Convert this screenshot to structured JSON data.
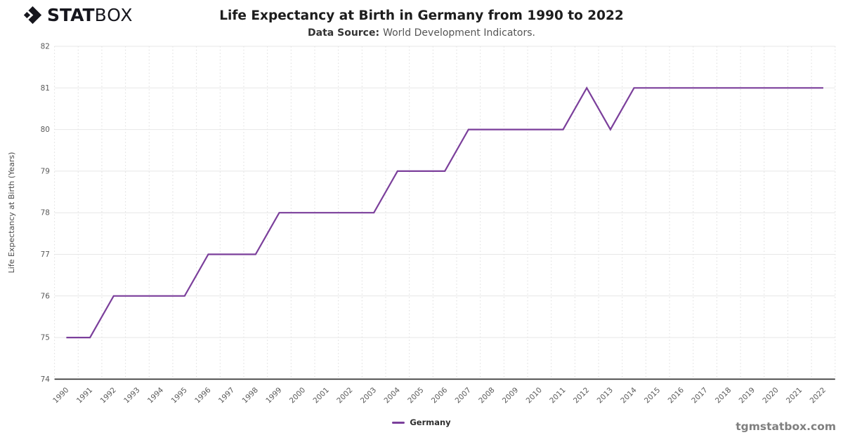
{
  "brand": {
    "stat": "STAT",
    "box": "BOX"
  },
  "header": {
    "title": "Life Expectancy at Birth in Germany from 1990 to 2022",
    "data_source_label": "Data Source:",
    "data_source_text": "World Development Indicators."
  },
  "watermark": "tgmstatbox.com",
  "colors": {
    "series": "#7B3F9B",
    "axis": "#2a2a2a",
    "hgrid": "#e7e7e7",
    "vgrid": "#dcdcdc",
    "tick_text": "#595959",
    "brand_black": "#16161d",
    "watermark_gray": "#7f7f7f"
  },
  "chart_data": {
    "type": "line",
    "title": "Life Expectancy at Birth in Germany from 1990 to 2022",
    "xlabel": "",
    "ylabel": "Life Expectancy at Birth (Years)",
    "ylim": [
      74,
      82
    ],
    "yticks": [
      74,
      75,
      76,
      77,
      78,
      79,
      80,
      81,
      82
    ],
    "grid": {
      "horizontal": "solid",
      "vertical": "dotted"
    },
    "legend_position": "bottom-center",
    "x": [
      1990,
      1991,
      1992,
      1993,
      1994,
      1995,
      1996,
      1997,
      1998,
      1999,
      2000,
      2001,
      2002,
      2003,
      2004,
      2005,
      2006,
      2007,
      2008,
      2009,
      2010,
      2011,
      2012,
      2013,
      2014,
      2015,
      2016,
      2017,
      2018,
      2019,
      2020,
      2021,
      2022
    ],
    "series": [
      {
        "name": "Germany",
        "color": "#7B3F9B",
        "values": [
          75,
          75,
          76,
          76,
          76,
          76,
          77,
          77,
          77,
          78,
          78,
          78,
          78,
          78,
          79,
          79,
          79,
          80,
          80,
          80,
          80,
          80,
          81,
          80,
          81,
          81,
          81,
          81,
          81,
          81,
          81,
          81,
          81
        ]
      }
    ]
  }
}
